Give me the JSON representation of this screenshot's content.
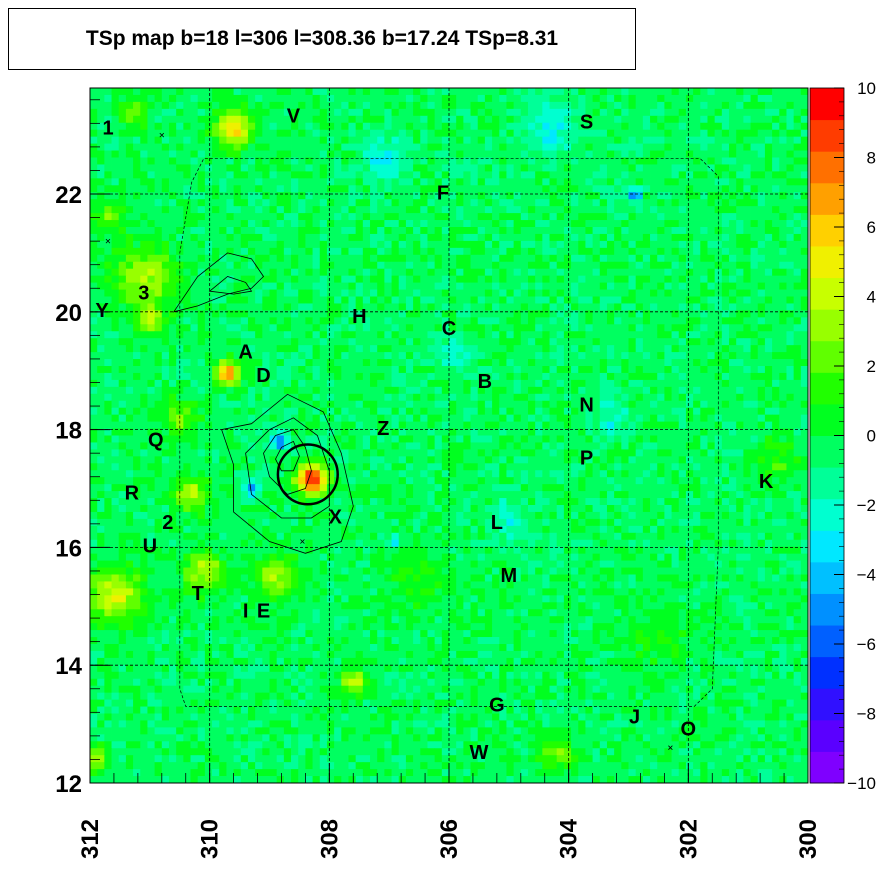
{
  "chart_data": {
    "type": "heatmap",
    "title": "TSp map b=18 l=306 l=308.36 b=17.24 TSp=8.31",
    "xaxis": {
      "min": 300,
      "max": 312,
      "reversed": true,
      "ticks": [
        312,
        310,
        308,
        306,
        304,
        302,
        300
      ],
      "tick_labels": [
        "312",
        "310",
        "308",
        "306",
        "304",
        "302",
        "300"
      ]
    },
    "yaxis": {
      "min": 12,
      "max": 23.8,
      "ticks": [
        12,
        14,
        16,
        18,
        20,
        22
      ],
      "tick_labels": [
        "12",
        "14",
        "16",
        "18",
        "20",
        "22"
      ]
    },
    "zaxis": {
      "min": -10,
      "max": 10,
      "ticks": [
        -10,
        -8,
        -6,
        -4,
        -2,
        0,
        2,
        4,
        6,
        8,
        10
      ],
      "tick_labels": [
        "−10",
        "−8",
        "−6",
        "−4",
        "−2",
        "0",
        "2",
        "4",
        "6",
        "8",
        "10"
      ]
    },
    "colors": [
      "#7f00ff",
      "#5a00ff",
      "#3010ff",
      "#0030ff",
      "#0060ff",
      "#0090ff",
      "#00c0ff",
      "#00e8ff",
      "#00ffd0",
      "#00ff98",
      "#00ff60",
      "#00ff20",
      "#20ff00",
      "#60ff00",
      "#98ff00",
      "#c8ff00",
      "#f0f000",
      "#ffd000",
      "#ffa000",
      "#ff7000",
      "#ff3c00",
      "#ff0000"
    ],
    "background_value": -0.4,
    "hotspots": [
      {
        "l": 308.3,
        "b": 17.15,
        "v": 10,
        "w": 0.25
      },
      {
        "l": 309.7,
        "b": 18.95,
        "v": 8,
        "w": 0.2
      },
      {
        "l": 309.6,
        "b": 23.1,
        "v": 6,
        "w": 0.3
      },
      {
        "l": 311.1,
        "b": 20.6,
        "v": 4,
        "w": 0.5
      },
      {
        "l": 311.0,
        "b": 19.9,
        "v": 4,
        "w": 0.25
      },
      {
        "l": 311.6,
        "b": 15.2,
        "v": 5,
        "w": 0.45
      },
      {
        "l": 311.7,
        "b": 21.6,
        "v": 3,
        "w": 0.25
      },
      {
        "l": 310.3,
        "b": 16.9,
        "v": 4,
        "w": 0.3
      },
      {
        "l": 310.1,
        "b": 15.6,
        "v": 4,
        "w": 0.35
      },
      {
        "l": 308.9,
        "b": 15.5,
        "v": 4,
        "w": 0.35
      },
      {
        "l": 307.6,
        "b": 13.7,
        "v": 5,
        "w": 0.2
      },
      {
        "l": 304.2,
        "b": 12.5,
        "v": 3,
        "w": 0.3
      },
      {
        "l": 311.9,
        "b": 12.4,
        "v": 4,
        "w": 0.2
      },
      {
        "l": 310.5,
        "b": 18.2,
        "v": 3,
        "w": 0.3
      },
      {
        "l": 311.3,
        "b": 23.4,
        "v": 3,
        "w": 0.25
      },
      {
        "l": 308.8,
        "b": 17.8,
        "v": -5,
        "w": 0.15
      },
      {
        "l": 309.3,
        "b": 17.0,
        "v": -4,
        "w": 0.15
      },
      {
        "l": 302.9,
        "b": 22.0,
        "v": -5,
        "w": 0.12
      },
      {
        "l": 307.1,
        "b": 22.6,
        "v": -2.5,
        "w": 0.35
      },
      {
        "l": 304.3,
        "b": 23.1,
        "v": -2.5,
        "w": 0.4
      },
      {
        "l": 305.9,
        "b": 19.3,
        "v": -2,
        "w": 0.3
      },
      {
        "l": 305.0,
        "b": 16.5,
        "v": -2,
        "w": 0.3
      },
      {
        "l": 303.3,
        "b": 18.2,
        "v": -2,
        "w": 0.3
      },
      {
        "l": 306.9,
        "b": 16.1,
        "v": -3,
        "w": 0.12
      },
      {
        "l": 300.5,
        "b": 17.5,
        "v": 2,
        "w": 0.35
      },
      {
        "l": 302.5,
        "b": 14.5,
        "v": 1.5,
        "w": 0.5
      },
      {
        "l": 306.5,
        "b": 15.5,
        "v": 1.5,
        "w": 0.5
      }
    ],
    "source_labels": [
      {
        "text": "1",
        "l": 311.7,
        "b": 23.1
      },
      {
        "text": "V",
        "l": 308.6,
        "b": 23.3
      },
      {
        "text": "S",
        "l": 303.7,
        "b": 23.2
      },
      {
        "text": "F",
        "l": 306.1,
        "b": 22.0
      },
      {
        "text": "3",
        "l": 311.1,
        "b": 20.3
      },
      {
        "text": "Y",
        "l": 311.8,
        "b": 20.0
      },
      {
        "text": "H",
        "l": 307.5,
        "b": 19.9
      },
      {
        "text": "C",
        "l": 306.0,
        "b": 19.7
      },
      {
        "text": "A",
        "l": 309.4,
        "b": 19.3
      },
      {
        "text": "D",
        "l": 309.1,
        "b": 18.9
      },
      {
        "text": "B",
        "l": 305.4,
        "b": 18.8
      },
      {
        "text": "N",
        "l": 303.7,
        "b": 18.4
      },
      {
        "text": "Z",
        "l": 307.1,
        "b": 18.0
      },
      {
        "text": "Q",
        "l": 310.9,
        "b": 17.8
      },
      {
        "text": "P",
        "l": 303.7,
        "b": 17.5
      },
      {
        "text": "K",
        "l": 300.7,
        "b": 17.1
      },
      {
        "text": "R",
        "l": 311.3,
        "b": 16.9
      },
      {
        "text": "X",
        "l": 307.9,
        "b": 16.5
      },
      {
        "text": "2",
        "l": 310.7,
        "b": 16.4
      },
      {
        "text": "L",
        "l": 305.2,
        "b": 16.4
      },
      {
        "text": "U",
        "l": 311.0,
        "b": 16.0
      },
      {
        "text": "M",
        "l": 305.0,
        "b": 15.5
      },
      {
        "text": "T",
        "l": 310.2,
        "b": 15.2
      },
      {
        "text": "I",
        "l": 309.4,
        "b": 14.9
      },
      {
        "text": "E",
        "l": 309.1,
        "b": 14.9
      },
      {
        "text": "G",
        "l": 305.2,
        "b": 13.3
      },
      {
        "text": "J",
        "l": 302.9,
        "b": 13.1
      },
      {
        "text": "O",
        "l": 302.0,
        "b": 12.9
      },
      {
        "text": "W",
        "l": 305.5,
        "b": 12.5
      }
    ],
    "circle": {
      "l": 308.36,
      "b": 17.24,
      "radius_deg": 0.5
    },
    "cross_markers": [
      {
        "l": 310.8,
        "b": 23.0
      },
      {
        "l": 311.7,
        "b": 21.2
      },
      {
        "l": 308.45,
        "b": 16.1
      },
      {
        "l": 302.3,
        "b": 12.6
      }
    ],
    "contours": [
      [
        [
          309.3,
          18.1
        ],
        [
          308.7,
          18.6
        ],
        [
          308.1,
          18.3
        ],
        [
          307.8,
          17.6
        ],
        [
          307.6,
          16.7
        ],
        [
          307.8,
          16.1
        ],
        [
          308.4,
          15.9
        ],
        [
          309.0,
          16.1
        ],
        [
          309.6,
          16.6
        ],
        [
          309.6,
          17.4
        ],
        [
          309.8,
          18.0
        ]
      ],
      [
        [
          309.0,
          18.0
        ],
        [
          308.6,
          18.2
        ],
        [
          308.2,
          17.9
        ],
        [
          308.0,
          17.3
        ],
        [
          308.0,
          16.7
        ],
        [
          308.3,
          16.5
        ],
        [
          308.8,
          16.5
        ],
        [
          309.3,
          16.9
        ],
        [
          309.4,
          17.6
        ]
      ],
      [
        [
          308.9,
          17.9
        ],
        [
          308.6,
          18.0
        ],
        [
          308.4,
          17.7
        ],
        [
          308.3,
          17.3
        ],
        [
          308.4,
          17.0
        ],
        [
          308.7,
          16.9
        ],
        [
          309.0,
          17.2
        ],
        [
          309.1,
          17.6
        ]
      ],
      [
        [
          308.8,
          17.7
        ],
        [
          308.6,
          17.8
        ],
        [
          308.5,
          17.55
        ],
        [
          308.6,
          17.3
        ],
        [
          308.8,
          17.3
        ],
        [
          308.9,
          17.5
        ]
      ],
      [
        [
          310.6,
          20.0
        ],
        [
          310.2,
          20.6
        ],
        [
          309.7,
          21.0
        ],
        [
          309.3,
          20.9
        ],
        [
          309.1,
          20.6
        ],
        [
          309.3,
          20.4
        ],
        [
          309.7,
          20.3
        ],
        [
          310.2,
          20.1
        ]
      ],
      [
        [
          310.0,
          20.35
        ],
        [
          309.7,
          20.6
        ],
        [
          309.4,
          20.5
        ],
        [
          309.3,
          20.35
        ],
        [
          309.6,
          20.3
        ]
      ]
    ],
    "outline": [
      [
        309.4,
        22.6
      ],
      [
        304.2,
        22.6
      ],
      [
        303.9,
        22.6
      ],
      [
        301.8,
        22.6
      ],
      [
        301.5,
        22.3
      ],
      [
        301.5,
        16.0
      ],
      [
        301.6,
        13.6
      ],
      [
        301.9,
        13.3
      ],
      [
        310.4,
        13.3
      ],
      [
        310.5,
        13.6
      ],
      [
        310.5,
        21.0
      ],
      [
        310.3,
        22.2
      ],
      [
        310.1,
        22.6
      ]
    ]
  }
}
